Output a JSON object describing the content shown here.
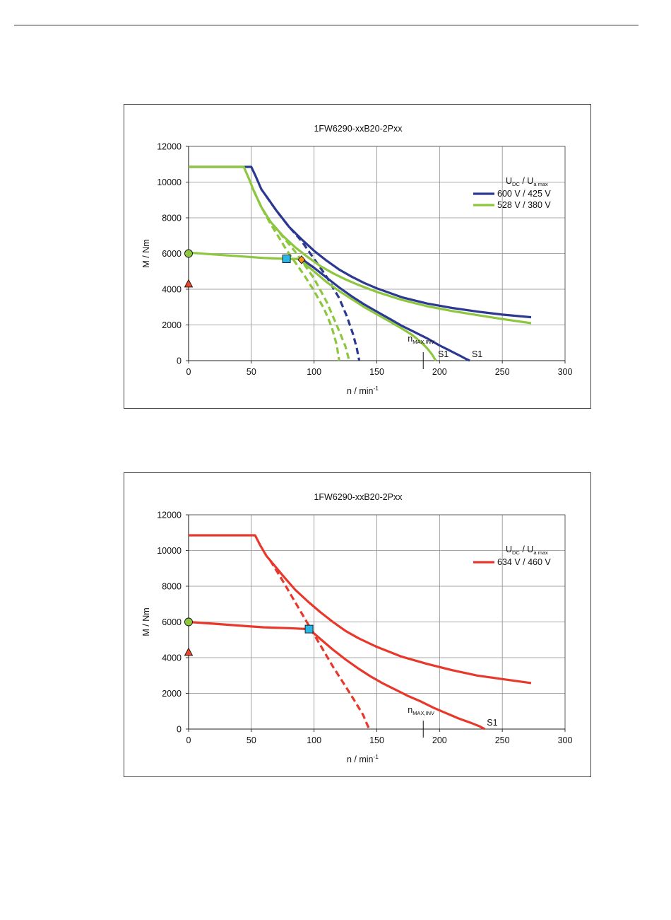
{
  "page": {
    "rule": true
  },
  "chart_data": [
    {
      "type": "line",
      "title": "1FW6290-xxB20-2Pxx",
      "xlabel": {
        "main": "n / min",
        "sup": "-1"
      },
      "ylabel": "M / Nm",
      "xlim": [
        0,
        300
      ],
      "ylim": [
        0,
        12000
      ],
      "x_ticks": [
        0,
        50,
        100,
        150,
        200,
        250,
        300
      ],
      "y_ticks": [
        0,
        2000,
        4000,
        6000,
        8000,
        10000,
        12000
      ],
      "grid": true,
      "legend_position": "top-right",
      "legend_header": {
        "u1": "U",
        "u1_sub": "DC",
        "sep": "/",
        "u2": "U",
        "u2_sub": "a max"
      },
      "series": [
        {
          "name": "600 V / 425 V",
          "color": "#2b3990",
          "style": "solid",
          "points": [
            [
              0,
              10850
            ],
            [
              50,
              10850
            ],
            [
              53,
              10400
            ],
            [
              58,
              9600
            ],
            [
              62,
              9200
            ],
            [
              70,
              8400
            ],
            [
              80,
              7500
            ],
            [
              90,
              6800
            ],
            [
              100,
              6150
            ],
            [
              110,
              5600
            ],
            [
              120,
              5100
            ],
            [
              130,
              4700
            ],
            [
              140,
              4350
            ],
            [
              150,
              4050
            ],
            [
              170,
              3550
            ],
            [
              190,
              3200
            ],
            [
              210,
              2950
            ],
            [
              230,
              2750
            ],
            [
              250,
              2580
            ],
            [
              273,
              2430
            ]
          ]
        },
        {
          "name": "",
          "color": "#2b3990",
          "style": "solid",
          "points": [
            [
              90,
              5700
            ],
            [
              100,
              5200
            ],
            [
              110,
              4650
            ],
            [
              120,
              4100
            ],
            [
              130,
              3600
            ],
            [
              140,
              3150
            ],
            [
              150,
              2750
            ],
            [
              160,
              2350
            ],
            [
              170,
              1950
            ],
            [
              180,
              1600
            ],
            [
              190,
              1250
            ],
            [
              200,
              850
            ],
            [
              210,
              500
            ],
            [
              217,
              250
            ],
            [
              221,
              100
            ],
            [
              224,
              0
            ]
          ]
        },
        {
          "name": "",
          "color": "#2b3990",
          "style": "dashed",
          "points": [
            [
              62,
              9200
            ],
            [
              70,
              8400
            ],
            [
              80,
              7500
            ],
            [
              90,
              6700
            ],
            [
              100,
              5700
            ],
            [
              110,
              4700
            ],
            [
              120,
              3500
            ],
            [
              126,
              2500
            ],
            [
              131,
              1500
            ],
            [
              134,
              700
            ],
            [
              136,
              0
            ]
          ]
        },
        {
          "name": "528 V / 380 V",
          "color": "#8dc63f",
          "style": "solid",
          "points": [
            [
              0,
              10850
            ],
            [
              44,
              10850
            ],
            [
              48,
              10200
            ],
            [
              52,
              9500
            ],
            [
              58,
              8600
            ],
            [
              65,
              7800
            ],
            [
              75,
              7000
            ],
            [
              85,
              6350
            ],
            [
              95,
              5800
            ],
            [
              105,
              5300
            ],
            [
              115,
              4900
            ],
            [
              125,
              4550
            ],
            [
              135,
              4250
            ],
            [
              150,
              3850
            ],
            [
              170,
              3400
            ],
            [
              190,
              3050
            ],
            [
              210,
              2780
            ],
            [
              230,
              2550
            ],
            [
              250,
              2330
            ],
            [
              273,
              2100
            ]
          ]
        },
        {
          "name": "",
          "color": "#8dc63f",
          "style": "solid",
          "points": [
            [
              0,
              6050
            ],
            [
              20,
              5950
            ],
            [
              40,
              5850
            ],
            [
              60,
              5750
            ],
            [
              78,
              5700
            ],
            [
              88,
              5700
            ],
            [
              100,
              5000
            ],
            [
              110,
              4400
            ],
            [
              120,
              3900
            ],
            [
              130,
              3450
            ],
            [
              140,
              3000
            ],
            [
              150,
              2600
            ],
            [
              160,
              2200
            ],
            [
              170,
              1800
            ],
            [
              178,
              1450
            ],
            [
              185,
              1050
            ],
            [
              190,
              700
            ],
            [
              194,
              350
            ],
            [
              197,
              0
            ]
          ]
        },
        {
          "name": "",
          "color": "#8dc63f",
          "style": "dashed",
          "points": [
            [
              52,
              9500
            ],
            [
              58,
              8600
            ],
            [
              65,
              7700
            ],
            [
              72,
              6900
            ],
            [
              78,
              6200
            ],
            [
              85,
              5500
            ],
            [
              92,
              4800
            ],
            [
              100,
              3900
            ],
            [
              108,
              2900
            ],
            [
              114,
              1900
            ],
            [
              118,
              900
            ],
            [
              120,
              0
            ]
          ]
        },
        {
          "name": "",
          "color": "#8dc63f",
          "style": "dashed",
          "points": [
            [
              52,
              9500
            ],
            [
              58,
              8600
            ],
            [
              65,
              7800
            ],
            [
              75,
              6950
            ],
            [
              85,
              6100
            ],
            [
              92,
              5400
            ],
            [
              100,
              4600
            ],
            [
              110,
              3300
            ],
            [
              118,
              2000
            ],
            [
              125,
              800
            ],
            [
              128,
              0
            ]
          ]
        }
      ],
      "markers": [
        {
          "shape": "circle",
          "x": 0,
          "y": 6000,
          "color": "#8dc63f"
        },
        {
          "shape": "triangle",
          "x": 0,
          "y": 4300,
          "color": "#e8472b"
        },
        {
          "shape": "square",
          "x": 78,
          "y": 5700,
          "color": "#29b6e8"
        },
        {
          "shape": "diamond",
          "x": 90,
          "y": 5650,
          "color": "#f7941d"
        }
      ],
      "annotations": {
        "nmax": {
          "text": "n",
          "sub": "MAX,INV",
          "x": 187
        },
        "s1_labels": [
          {
            "text": "S1",
            "x": 197
          },
          {
            "text": "S1",
            "x": 224
          }
        ]
      }
    },
    {
      "type": "line",
      "title": "1FW6290-xxB20-2Pxx",
      "xlabel": {
        "main": "n / min",
        "sup": "-1"
      },
      "ylabel": "M / Nm",
      "xlim": [
        0,
        300
      ],
      "ylim": [
        0,
        12000
      ],
      "x_ticks": [
        0,
        50,
        100,
        150,
        200,
        250,
        300
      ],
      "y_ticks": [
        0,
        2000,
        4000,
        6000,
        8000,
        10000,
        12000
      ],
      "grid": true,
      "legend_position": "top-right",
      "legend_header": {
        "u1": "U",
        "u1_sub": "DC",
        "sep": "/",
        "u2": "U",
        "u2_sub": "a max"
      },
      "series": [
        {
          "name": "634 V / 460 V",
          "color": "#e8382b",
          "style": "solid",
          "points": [
            [
              0,
              10850
            ],
            [
              53,
              10850
            ],
            [
              57,
              10300
            ],
            [
              62,
              9700
            ],
            [
              65,
              9450
            ],
            [
              75,
              8600
            ],
            [
              85,
              7800
            ],
            [
              95,
              7150
            ],
            [
              105,
              6550
            ],
            [
              115,
              6000
            ],
            [
              125,
              5500
            ],
            [
              135,
              5100
            ],
            [
              150,
              4600
            ],
            [
              170,
              4050
            ],
            [
              190,
              3650
            ],
            [
              210,
              3300
            ],
            [
              230,
              3000
            ],
            [
              250,
              2800
            ],
            [
              273,
              2580
            ]
          ]
        },
        {
          "name": "",
          "color": "#e8382b",
          "style": "solid",
          "points": [
            [
              0,
              6000
            ],
            [
              20,
              5900
            ],
            [
              40,
              5800
            ],
            [
              60,
              5700
            ],
            [
              80,
              5650
            ],
            [
              96,
              5600
            ],
            [
              105,
              5050
            ],
            [
              115,
              4450
            ],
            [
              125,
              3900
            ],
            [
              135,
              3400
            ],
            [
              145,
              2950
            ],
            [
              155,
              2550
            ],
            [
              165,
              2200
            ],
            [
              175,
              1850
            ],
            [
              185,
              1550
            ],
            [
              195,
              1200
            ],
            [
              205,
              900
            ],
            [
              215,
              600
            ],
            [
              225,
              350
            ],
            [
              232,
              150
            ],
            [
              236,
              0
            ]
          ]
        },
        {
          "name": "",
          "color": "#e8382b",
          "style": "dashed",
          "points": [
            [
              65,
              9450
            ],
            [
              75,
              8300
            ],
            [
              85,
              7100
            ],
            [
              95,
              5900
            ],
            [
              105,
              4700
            ],
            [
              115,
              3500
            ],
            [
              125,
              2400
            ],
            [
              133,
              1500
            ],
            [
              139,
              800
            ],
            [
              142,
              300
            ],
            [
              144,
              0
            ]
          ]
        }
      ],
      "markers": [
        {
          "shape": "circle",
          "x": 0,
          "y": 6000,
          "color": "#8dc63f"
        },
        {
          "shape": "triangle",
          "x": 0,
          "y": 4300,
          "color": "#e8472b"
        },
        {
          "shape": "square",
          "x": 96,
          "y": 5600,
          "color": "#29b6e8"
        }
      ],
      "annotations": {
        "nmax": {
          "text": "n",
          "sub": "MAX,INV",
          "x": 187
        },
        "s1_labels": [
          {
            "text": "S1",
            "x": 236
          }
        ]
      }
    }
  ]
}
